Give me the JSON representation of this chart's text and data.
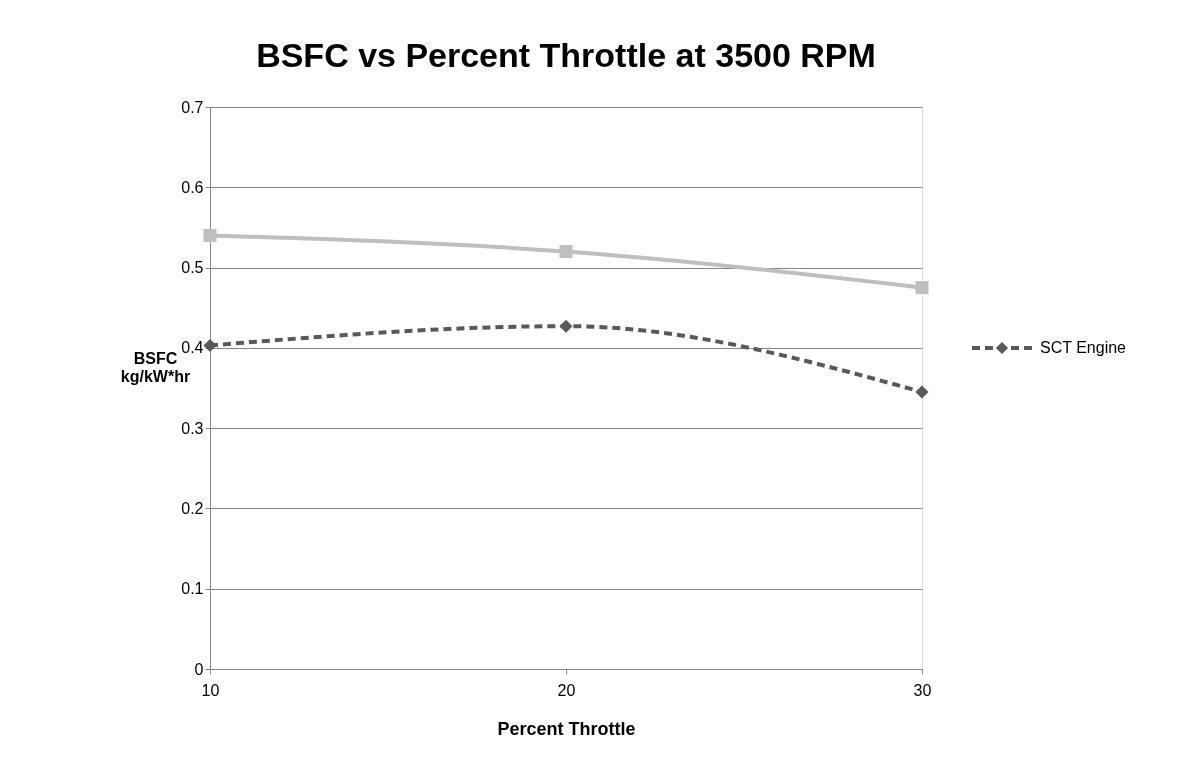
{
  "chart_data": {
    "type": "line",
    "title": "BSFC vs Percent Throttle at 3500 RPM",
    "xlabel": "Percent Throttle",
    "ylabel": "BSFC\nkg/kW*hr",
    "categories": [
      "10",
      "20",
      "30"
    ],
    "series": [
      {
        "color": "#bfbfbf",
        "values": [
          0.54,
          0.52,
          0.475
        ],
        "marker": "square",
        "line_style": "solid"
      },
      {
        "name": "SCT Engine",
        "color": "#595959",
        "values": [
          0.403,
          0.427,
          0.345
        ],
        "marker": "diamond",
        "line_style": "dashed"
      }
    ],
    "ylim": [
      0,
      0.7
    ],
    "yticks": [
      0,
      0.1,
      0.2,
      0.3,
      0.4,
      0.5,
      0.6,
      0.7
    ],
    "grid": "y",
    "legend": "right"
  }
}
